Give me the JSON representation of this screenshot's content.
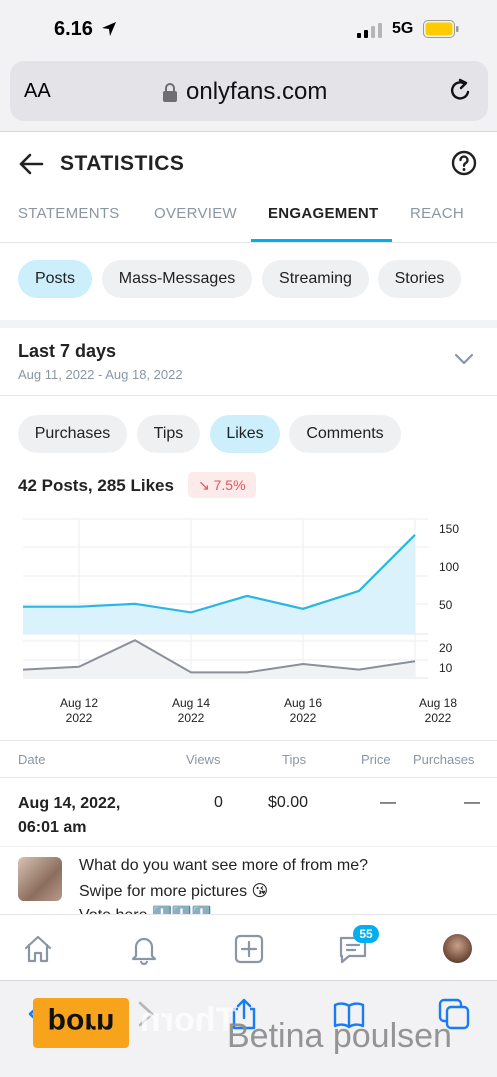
{
  "status": {
    "time": "6.16",
    "network": "5G"
  },
  "browser": {
    "text_size": "AA",
    "url": "onlyfans.com"
  },
  "header": {
    "title": "STATISTICS"
  },
  "tabs": [
    "STATEMENTS",
    "OVERVIEW",
    "ENGAGEMENT",
    "REACH"
  ],
  "content_types": [
    "Posts",
    "Mass-Messages",
    "Streaming",
    "Stories"
  ],
  "period": {
    "title": "Last 7 days",
    "range": "Aug 11, 2022 - Aug 18, 2022"
  },
  "metrics": [
    "Purchases",
    "Tips",
    "Likes",
    "Comments"
  ],
  "summary": {
    "text": "42 Posts, 285 Likes",
    "change": "7.5%"
  },
  "chart_data": {
    "type": "line",
    "x": [
      "Aug 11",
      "Aug 12",
      "Aug 13",
      "Aug 14",
      "Aug 15",
      "Aug 16",
      "Aug 17",
      "Aug 18"
    ],
    "x_tick_labels": [
      {
        "line1": "Aug 12",
        "line2": "2022"
      },
      {
        "line1": "Aug 14",
        "line2": "2022"
      },
      {
        "line1": "Aug 16",
        "line2": "2022"
      },
      {
        "line1": "Aug 18",
        "line2": "2022"
      }
    ],
    "series": [
      {
        "values": [
          38,
          38,
          42,
          30,
          53,
          35,
          60,
          138
        ],
        "color": "#29b6e6",
        "fill": "#d9f2fb"
      },
      {
        "values": [
          6,
          8,
          27,
          4,
          4,
          10,
          6,
          12
        ],
        "color": "#8a8f98"
      }
    ],
    "top_axis": {
      "ticks": [
        "150",
        "100",
        "50"
      ],
      "ylim": [
        0,
        160
      ]
    },
    "bottom_axis": {
      "ticks": [
        "20",
        "10"
      ],
      "ylim": [
        0,
        30
      ]
    },
    "grid": true
  },
  "table": {
    "headers": [
      "Date",
      "Views",
      "Tips",
      "Price",
      "Purchases"
    ],
    "row": {
      "date_line1": "Aug 14, 2022,",
      "date_line2": "06:01 am",
      "views": "0",
      "tips": "$0.00",
      "price": "—",
      "purchases": "—"
    }
  },
  "post_preview": {
    "line1": "What do you want see more of from me?",
    "line2": "Swipe for more pictures 😘",
    "line3": "Vote here ⬇️⬇️⬇️"
  },
  "nav": {
    "messages_badge": "55"
  },
  "watermark": {
    "logo": "porn",
    "faint": "Thorn",
    "name": "Betina poulsen"
  }
}
